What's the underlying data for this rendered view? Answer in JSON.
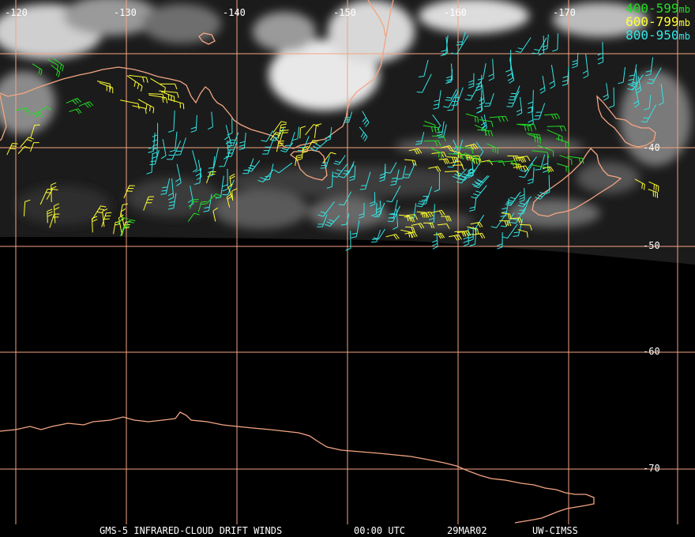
{
  "map": {
    "longitude_labels": [
      "-120",
      "-130",
      "-140",
      "-150",
      "-160",
      "-170"
    ],
    "latitude_labels": [
      "-40",
      "-50",
      "-60",
      "-70"
    ],
    "colors": {
      "grid": "#f4a582",
      "coast": "#f4a582",
      "layer_400_599": "#22dd22",
      "layer_600_799": "#ffff33",
      "layer_800_950": "#33e6e6"
    }
  },
  "legend": [
    {
      "range": "400-599",
      "unit": "mb",
      "color": "#22dd22"
    },
    {
      "range": "600-799",
      "unit": "mb",
      "color": "#ffff33"
    },
    {
      "range": "800-950",
      "unit": "mb",
      "color": "#33e6e6"
    }
  ],
  "footer": {
    "product": "GMS-5 INFRARED-CLOUD DRIFT WINDS",
    "time": "00:00 UTC",
    "date": "29MAR02",
    "source": "UW-CIMSS"
  }
}
